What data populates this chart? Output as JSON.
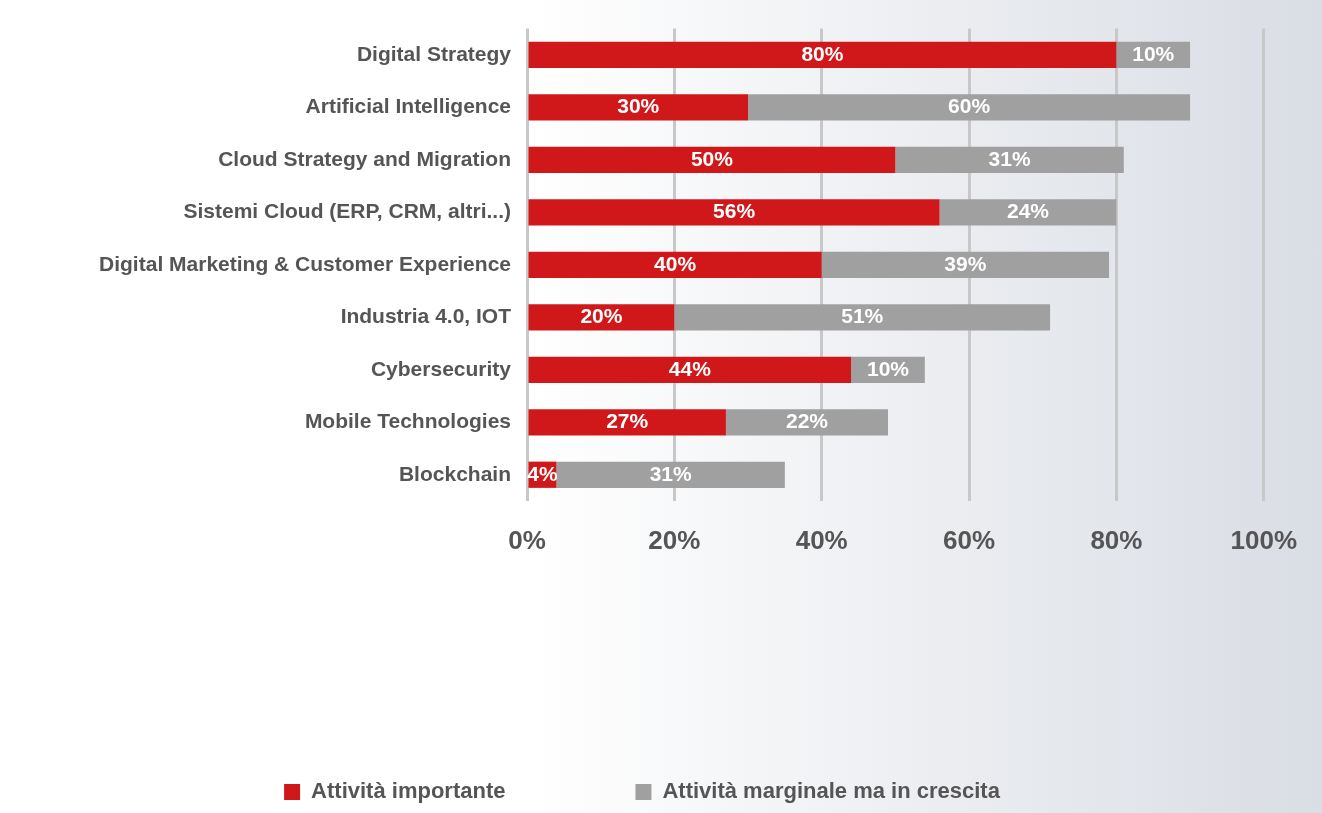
{
  "chart_data": {
    "type": "bar",
    "orientation": "horizontal",
    "stacked": true,
    "categories": [
      "Digital Strategy",
      "Artificial Intelligence",
      "Cloud Strategy and Migration",
      "Sistemi Cloud (ERP, CRM, altri...)",
      "Digital Marketing & Customer Experience",
      "Industria 4.0, IOT",
      "Cybersecurity",
      "Mobile Technologies",
      "Blockchain"
    ],
    "series": [
      {
        "name": "Attività importante",
        "color": "#d0181b",
        "values": [
          80,
          30,
          50,
          56,
          40,
          20,
          44,
          27,
          4
        ],
        "value_labels": [
          "80%",
          "30%",
          "50%",
          "56%",
          "40%",
          "20%",
          "44%",
          "27%",
          "4%"
        ]
      },
      {
        "name": "Attività marginale ma in crescita",
        "color": "#a0a0a0",
        "values": [
          10,
          60,
          31,
          24,
          39,
          51,
          10,
          22,
          31
        ],
        "value_labels": [
          "10%",
          "60%",
          "31%",
          "24%",
          "39%",
          "51%",
          "10%",
          "22%",
          "31%"
        ]
      }
    ],
    "xlim": [
      0,
      100
    ],
    "xticks": [
      {
        "value": 0,
        "label": "0%"
      },
      {
        "value": 20,
        "label": "20%"
      },
      {
        "value": 40,
        "label": "40%"
      },
      {
        "value": 60,
        "label": "60%"
      },
      {
        "value": 80,
        "label": "80%"
      },
      {
        "value": 100,
        "label": "100%"
      }
    ],
    "grid": "x",
    "legend": "bottom"
  }
}
